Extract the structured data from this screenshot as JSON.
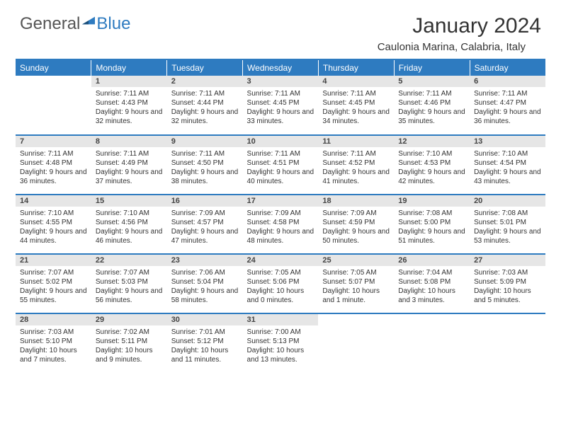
{
  "brand": {
    "general": "General",
    "blue": "Blue"
  },
  "title": "January 2024",
  "location": "Caulonia Marina, Calabria, Italy",
  "colors": {
    "accent": "#2e7bc0",
    "header_bg": "#2e7bc0",
    "header_text": "#ffffff",
    "daynum_bg": "#e6e6e6",
    "body_bg": "#ffffff",
    "text": "#333333"
  },
  "weekdays": [
    "Sunday",
    "Monday",
    "Tuesday",
    "Wednesday",
    "Thursday",
    "Friday",
    "Saturday"
  ],
  "weeks": [
    [
      {
        "n": "",
        "sr": "",
        "ss": "",
        "dl": ""
      },
      {
        "n": "1",
        "sr": "Sunrise: 7:11 AM",
        "ss": "Sunset: 4:43 PM",
        "dl": "Daylight: 9 hours and 32 minutes."
      },
      {
        "n": "2",
        "sr": "Sunrise: 7:11 AM",
        "ss": "Sunset: 4:44 PM",
        "dl": "Daylight: 9 hours and 32 minutes."
      },
      {
        "n": "3",
        "sr": "Sunrise: 7:11 AM",
        "ss": "Sunset: 4:45 PM",
        "dl": "Daylight: 9 hours and 33 minutes."
      },
      {
        "n": "4",
        "sr": "Sunrise: 7:11 AM",
        "ss": "Sunset: 4:45 PM",
        "dl": "Daylight: 9 hours and 34 minutes."
      },
      {
        "n": "5",
        "sr": "Sunrise: 7:11 AM",
        "ss": "Sunset: 4:46 PM",
        "dl": "Daylight: 9 hours and 35 minutes."
      },
      {
        "n": "6",
        "sr": "Sunrise: 7:11 AM",
        "ss": "Sunset: 4:47 PM",
        "dl": "Daylight: 9 hours and 36 minutes."
      }
    ],
    [
      {
        "n": "7",
        "sr": "Sunrise: 7:11 AM",
        "ss": "Sunset: 4:48 PM",
        "dl": "Daylight: 9 hours and 36 minutes."
      },
      {
        "n": "8",
        "sr": "Sunrise: 7:11 AM",
        "ss": "Sunset: 4:49 PM",
        "dl": "Daylight: 9 hours and 37 minutes."
      },
      {
        "n": "9",
        "sr": "Sunrise: 7:11 AM",
        "ss": "Sunset: 4:50 PM",
        "dl": "Daylight: 9 hours and 38 minutes."
      },
      {
        "n": "10",
        "sr": "Sunrise: 7:11 AM",
        "ss": "Sunset: 4:51 PM",
        "dl": "Daylight: 9 hours and 40 minutes."
      },
      {
        "n": "11",
        "sr": "Sunrise: 7:11 AM",
        "ss": "Sunset: 4:52 PM",
        "dl": "Daylight: 9 hours and 41 minutes."
      },
      {
        "n": "12",
        "sr": "Sunrise: 7:10 AM",
        "ss": "Sunset: 4:53 PM",
        "dl": "Daylight: 9 hours and 42 minutes."
      },
      {
        "n": "13",
        "sr": "Sunrise: 7:10 AM",
        "ss": "Sunset: 4:54 PM",
        "dl": "Daylight: 9 hours and 43 minutes."
      }
    ],
    [
      {
        "n": "14",
        "sr": "Sunrise: 7:10 AM",
        "ss": "Sunset: 4:55 PM",
        "dl": "Daylight: 9 hours and 44 minutes."
      },
      {
        "n": "15",
        "sr": "Sunrise: 7:10 AM",
        "ss": "Sunset: 4:56 PM",
        "dl": "Daylight: 9 hours and 46 minutes."
      },
      {
        "n": "16",
        "sr": "Sunrise: 7:09 AM",
        "ss": "Sunset: 4:57 PM",
        "dl": "Daylight: 9 hours and 47 minutes."
      },
      {
        "n": "17",
        "sr": "Sunrise: 7:09 AM",
        "ss": "Sunset: 4:58 PM",
        "dl": "Daylight: 9 hours and 48 minutes."
      },
      {
        "n": "18",
        "sr": "Sunrise: 7:09 AM",
        "ss": "Sunset: 4:59 PM",
        "dl": "Daylight: 9 hours and 50 minutes."
      },
      {
        "n": "19",
        "sr": "Sunrise: 7:08 AM",
        "ss": "Sunset: 5:00 PM",
        "dl": "Daylight: 9 hours and 51 minutes."
      },
      {
        "n": "20",
        "sr": "Sunrise: 7:08 AM",
        "ss": "Sunset: 5:01 PM",
        "dl": "Daylight: 9 hours and 53 minutes."
      }
    ],
    [
      {
        "n": "21",
        "sr": "Sunrise: 7:07 AM",
        "ss": "Sunset: 5:02 PM",
        "dl": "Daylight: 9 hours and 55 minutes."
      },
      {
        "n": "22",
        "sr": "Sunrise: 7:07 AM",
        "ss": "Sunset: 5:03 PM",
        "dl": "Daylight: 9 hours and 56 minutes."
      },
      {
        "n": "23",
        "sr": "Sunrise: 7:06 AM",
        "ss": "Sunset: 5:04 PM",
        "dl": "Daylight: 9 hours and 58 minutes."
      },
      {
        "n": "24",
        "sr": "Sunrise: 7:05 AM",
        "ss": "Sunset: 5:06 PM",
        "dl": "Daylight: 10 hours and 0 minutes."
      },
      {
        "n": "25",
        "sr": "Sunrise: 7:05 AM",
        "ss": "Sunset: 5:07 PM",
        "dl": "Daylight: 10 hours and 1 minute."
      },
      {
        "n": "26",
        "sr": "Sunrise: 7:04 AM",
        "ss": "Sunset: 5:08 PM",
        "dl": "Daylight: 10 hours and 3 minutes."
      },
      {
        "n": "27",
        "sr": "Sunrise: 7:03 AM",
        "ss": "Sunset: 5:09 PM",
        "dl": "Daylight: 10 hours and 5 minutes."
      }
    ],
    [
      {
        "n": "28",
        "sr": "Sunrise: 7:03 AM",
        "ss": "Sunset: 5:10 PM",
        "dl": "Daylight: 10 hours and 7 minutes."
      },
      {
        "n": "29",
        "sr": "Sunrise: 7:02 AM",
        "ss": "Sunset: 5:11 PM",
        "dl": "Daylight: 10 hours and 9 minutes."
      },
      {
        "n": "30",
        "sr": "Sunrise: 7:01 AM",
        "ss": "Sunset: 5:12 PM",
        "dl": "Daylight: 10 hours and 11 minutes."
      },
      {
        "n": "31",
        "sr": "Sunrise: 7:00 AM",
        "ss": "Sunset: 5:13 PM",
        "dl": "Daylight: 10 hours and 13 minutes."
      },
      {
        "n": "",
        "sr": "",
        "ss": "",
        "dl": ""
      },
      {
        "n": "",
        "sr": "",
        "ss": "",
        "dl": ""
      },
      {
        "n": "",
        "sr": "",
        "ss": "",
        "dl": ""
      }
    ]
  ]
}
